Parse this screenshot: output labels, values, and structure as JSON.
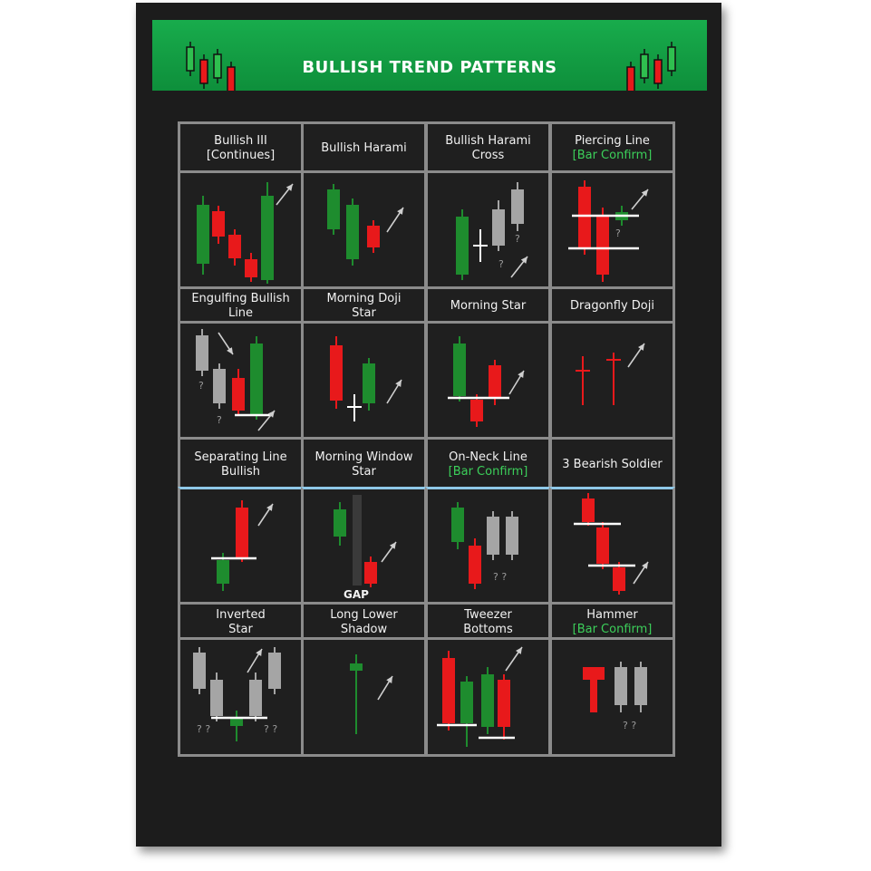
{
  "title": "BULLISH TREND PATTERNS",
  "colors": {
    "bull": "#1e8c2e",
    "bear": "#e8191b",
    "neutral": "#a5a5a5",
    "line": "#ffffff",
    "accent": "#3ccf5a",
    "banner": "#14a448"
  },
  "patterns": [
    {
      "line1": "Bullish III",
      "line2": "[Continues]",
      "sub": ""
    },
    {
      "line1": "Bullish Harami",
      "line2": "",
      "sub": ""
    },
    {
      "line1": "Bullish Harami",
      "line2": "Cross",
      "sub": ""
    },
    {
      "line1": "Piercing Line",
      "line2": "",
      "sub": "[Bar Confirm]"
    },
    {
      "line1": "Engulfing Bullish",
      "line2": "Line",
      "sub": ""
    },
    {
      "line1": "Morning Doji",
      "line2": "Star",
      "sub": ""
    },
    {
      "line1": "Morning Star",
      "line2": "",
      "sub": ""
    },
    {
      "line1": "Dragonfly Doji",
      "line2": "",
      "sub": ""
    },
    {
      "line1": "Separating Line",
      "line2": "Bullish",
      "sub": ""
    },
    {
      "line1": "Morning Window",
      "line2": "Star",
      "sub": ""
    },
    {
      "line1": "On-Neck Line",
      "line2": "",
      "sub": "[Bar Confirm]"
    },
    {
      "line1": "3 Bearish Soldier",
      "line2": "",
      "sub": ""
    },
    {
      "line1": "Inverted",
      "line2": "Star",
      "sub": ""
    },
    {
      "line1": "Long Lower",
      "line2": "Shadow",
      "sub": ""
    },
    {
      "line1": "Tweezer",
      "line2": "Bottoms",
      "sub": ""
    },
    {
      "line1": "Hammer",
      "line2": "",
      "sub": "[Bar Confirm]"
    }
  ],
  "question_mark": "?",
  "double_question": "? ?",
  "gap_label": "GAP"
}
